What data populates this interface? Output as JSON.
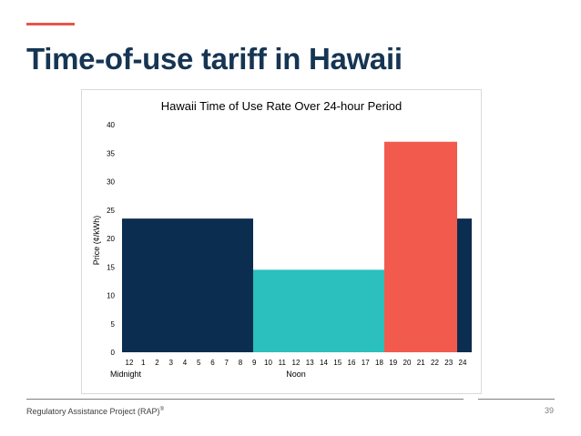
{
  "slide": {
    "title": "Time-of-use tariff in Hawaii",
    "accent_color": "#e8564b",
    "title_color": "#163553"
  },
  "footer": {
    "organization": "Regulatory Assistance Project (RAP)",
    "trademark": "®",
    "page_number": "39"
  },
  "chart_data": {
    "type": "bar",
    "title": "Hawaii Time of Use Rate Over 24-hour Period",
    "ylabel": "Price (¢/kWh)",
    "xlabel": "",
    "ylim": [
      0,
      40
    ],
    "yticks": [
      "0",
      "5",
      "10",
      "15",
      "20",
      "25",
      "30",
      "35",
      "40"
    ],
    "x_tick_labels": [
      "12",
      "1",
      "2",
      "3",
      "4",
      "5",
      "6",
      "7",
      "8",
      "9",
      "10",
      "11",
      "12",
      "13",
      "14",
      "15",
      "16",
      "17",
      "18",
      "19",
      "20",
      "21",
      "22",
      "23",
      "24"
    ],
    "x_annotations": [
      {
        "text": "Midnight",
        "at_hour": 0
      },
      {
        "text": "Noon",
        "at_hour": 12
      }
    ],
    "grid": false,
    "segments": [
      {
        "start_hour": 0,
        "end_hour": 9,
        "value": 23.5,
        "color": "#0b2d4f"
      },
      {
        "start_hour": 9,
        "end_hour": 18,
        "value": 14.5,
        "color": "#2bbfbd"
      },
      {
        "start_hour": 18,
        "end_hour": 23,
        "value": 37,
        "color": "#f25a4e"
      },
      {
        "start_hour": 23,
        "end_hour": 24,
        "value": 23.5,
        "color": "#0b2d4f"
      }
    ]
  }
}
